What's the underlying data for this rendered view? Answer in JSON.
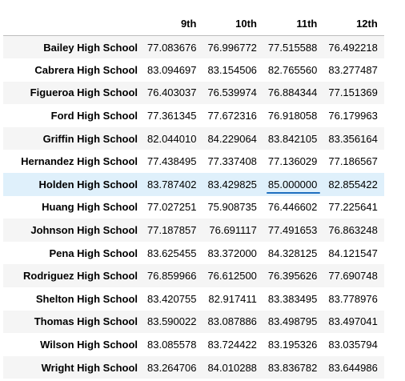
{
  "table": {
    "columns": [
      "9th",
      "10th",
      "11th",
      "12th"
    ],
    "rows": [
      {
        "school": "Bailey High School",
        "values": [
          "77.083676",
          "76.996772",
          "77.515588",
          "76.492218"
        ]
      },
      {
        "school": "Cabrera High School",
        "values": [
          "83.094697",
          "83.154506",
          "82.765560",
          "83.277487"
        ]
      },
      {
        "school": "Figueroa High School",
        "values": [
          "76.403037",
          "76.539974",
          "76.884344",
          "77.151369"
        ]
      },
      {
        "school": "Ford High School",
        "values": [
          "77.361345",
          "77.672316",
          "76.918058",
          "76.179963"
        ]
      },
      {
        "school": "Griffin High School",
        "values": [
          "82.044010",
          "84.229064",
          "83.842105",
          "83.356164"
        ]
      },
      {
        "school": "Hernandez High School",
        "values": [
          "77.438495",
          "77.337408",
          "77.136029",
          "77.186567"
        ]
      },
      {
        "school": "Holden High School",
        "values": [
          "83.787402",
          "83.429825",
          "85.000000",
          "82.855422"
        ]
      },
      {
        "school": "Huang High School",
        "values": [
          "77.027251",
          "75.908735",
          "76.446602",
          "77.225641"
        ]
      },
      {
        "school": "Johnson High School",
        "values": [
          "77.187857",
          "76.691117",
          "77.491653",
          "76.863248"
        ]
      },
      {
        "school": "Pena High School",
        "values": [
          "83.625455",
          "83.372000",
          "84.328125",
          "84.121547"
        ]
      },
      {
        "school": "Rodriguez High School",
        "values": [
          "76.859966",
          "76.612500",
          "76.395626",
          "77.690748"
        ]
      },
      {
        "school": "Shelton High School",
        "values": [
          "83.420755",
          "82.917411",
          "83.383495",
          "83.778976"
        ]
      },
      {
        "school": "Thomas High School",
        "values": [
          "83.590022",
          "83.087886",
          "83.498795",
          "83.497041"
        ]
      },
      {
        "school": "Wilson High School",
        "values": [
          "83.085578",
          "83.724422",
          "83.195326",
          "83.035794"
        ]
      },
      {
        "school": "Wright High School",
        "values": [
          "83.264706",
          "84.010288",
          "83.836782",
          "83.644986"
        ]
      }
    ],
    "highlighted_row": 6,
    "highlighted_column": 2,
    "colors": {
      "highlight_row": "#dff0fb",
      "striped_row": "#f5f5f5",
      "underline": "#1f6fbf"
    }
  }
}
